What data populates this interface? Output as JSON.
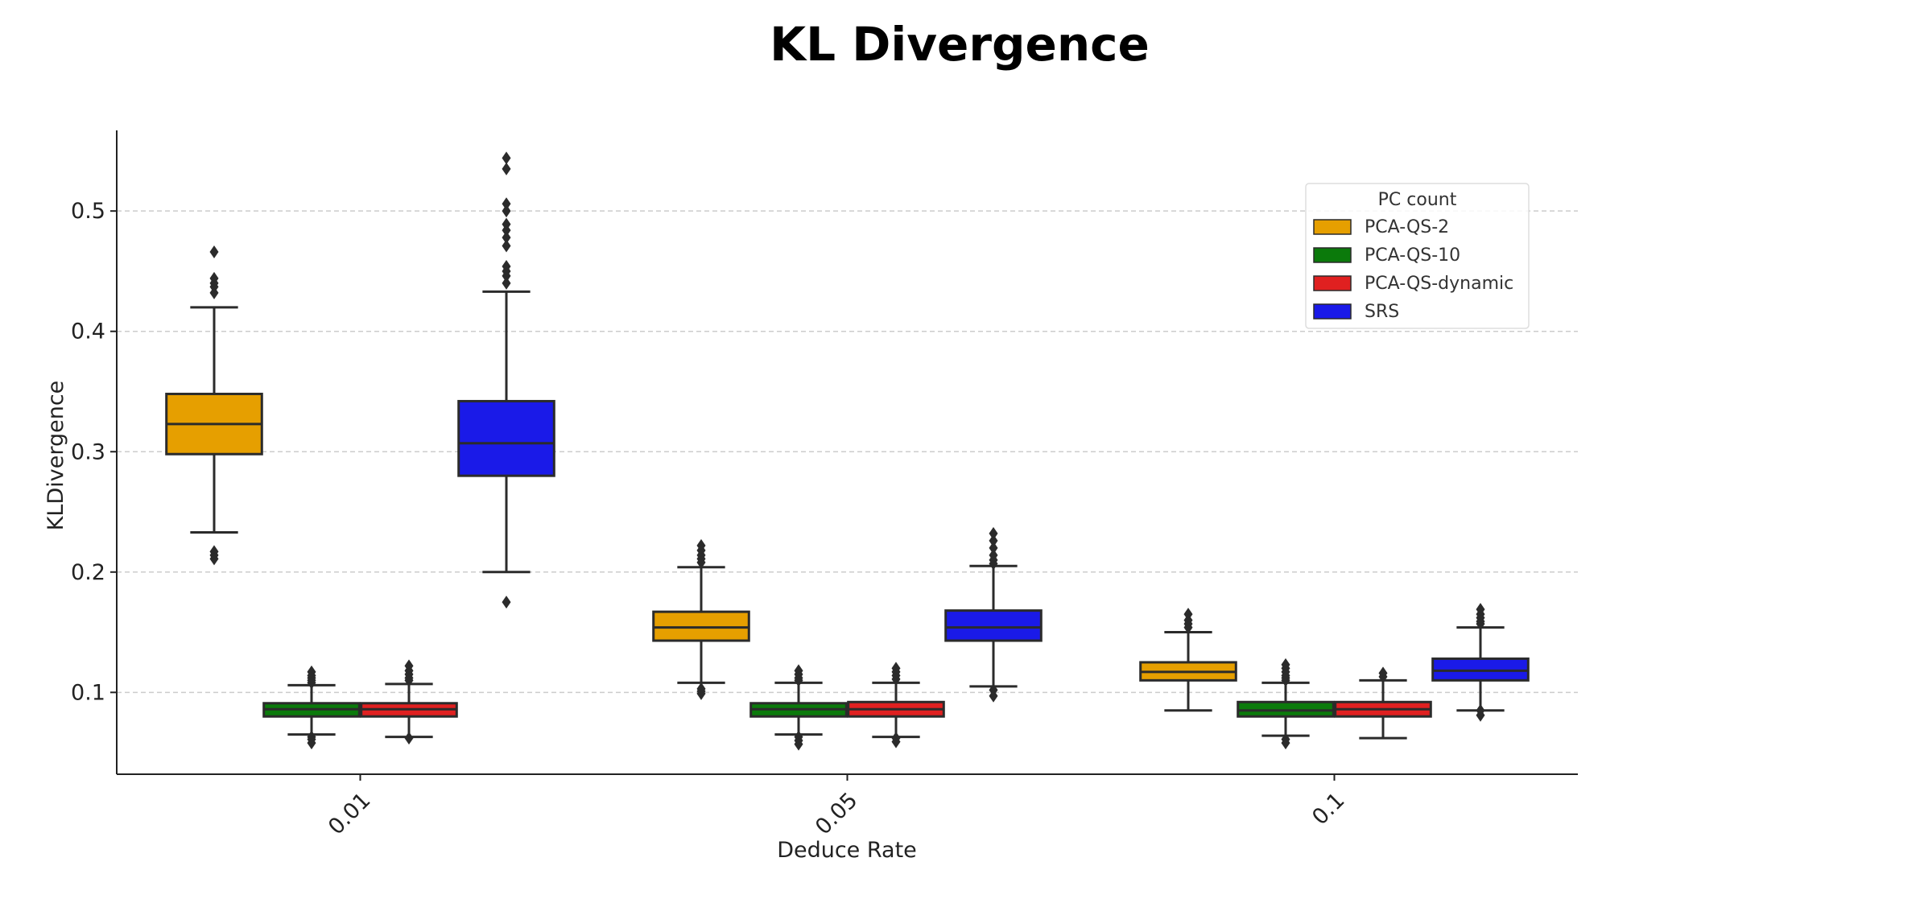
{
  "chart_data": {
    "type": "boxplot",
    "title": "KL Divergence",
    "xlabel": "Deduce Rate",
    "ylabel": "KLDivergence",
    "categories": [
      "0.01",
      "0.05",
      "0.1"
    ],
    "ylim": [
      0.032,
      0.567
    ],
    "yticks": [
      0.1,
      0.2,
      0.3,
      0.4,
      0.5
    ],
    "ytick_labels": [
      "0.1",
      "0.2",
      "0.3",
      "0.4",
      "0.5"
    ],
    "grid": "y-dashed",
    "legend": {
      "title": "PC count",
      "position": "top-right"
    },
    "series": [
      {
        "name": "PCA-QS-2",
        "color": "#e69f00",
        "boxes": [
          {
            "q1": 0.298,
            "median": 0.323,
            "q3": 0.348,
            "whislo": 0.233,
            "whishi": 0.42,
            "fliers": [
              0.466,
              0.444,
              0.44,
              0.437,
              0.432,
              0.217,
              0.214,
              0.211
            ]
          },
          {
            "q1": 0.143,
            "median": 0.154,
            "q3": 0.167,
            "whislo": 0.108,
            "whishi": 0.204,
            "fliers": [
              0.222,
              0.218,
              0.214,
              0.211,
              0.208,
              0.103,
              0.101,
              0.099
            ]
          },
          {
            "q1": 0.11,
            "median": 0.117,
            "q3": 0.125,
            "whislo": 0.085,
            "whishi": 0.15,
            "fliers": [
              0.165,
              0.16,
              0.157,
              0.154
            ]
          }
        ]
      },
      {
        "name": "PCA-QS-10",
        "color": "#0b7a0b",
        "boxes": [
          {
            "q1": 0.08,
            "median": 0.086,
            "q3": 0.091,
            "whislo": 0.065,
            "whishi": 0.106,
            "fliers": [
              0.117,
              0.114,
              0.112,
              0.11,
              0.108,
              0.063,
              0.061,
              0.058
            ]
          },
          {
            "q1": 0.08,
            "median": 0.086,
            "q3": 0.091,
            "whislo": 0.065,
            "whishi": 0.108,
            "fliers": [
              0.118,
              0.115,
              0.112,
              0.11,
              0.063,
              0.06,
              0.057
            ]
          },
          {
            "q1": 0.08,
            "median": 0.085,
            "q3": 0.092,
            "whislo": 0.064,
            "whishi": 0.108,
            "fliers": [
              0.123,
              0.12,
              0.117,
              0.114,
              0.112,
              0.11,
              0.061,
              0.058
            ]
          }
        ]
      },
      {
        "name": "PCA-QS-dynamic",
        "color": "#e02020",
        "boxes": [
          {
            "q1": 0.08,
            "median": 0.086,
            "q3": 0.091,
            "whislo": 0.063,
            "whishi": 0.107,
            "fliers": [
              0.122,
              0.118,
              0.115,
              0.112,
              0.11,
              0.062
            ]
          },
          {
            "q1": 0.08,
            "median": 0.086,
            "q3": 0.092,
            "whislo": 0.063,
            "whishi": 0.108,
            "fliers": [
              0.12,
              0.117,
              0.114,
              0.111,
              0.062,
              0.059
            ]
          },
          {
            "q1": 0.08,
            "median": 0.086,
            "q3": 0.092,
            "whislo": 0.062,
            "whishi": 0.11,
            "fliers": [
              0.116,
              0.113
            ]
          }
        ]
      },
      {
        "name": "SRS",
        "color": "#1a1ae8",
        "boxes": [
          {
            "q1": 0.28,
            "median": 0.307,
            "q3": 0.342,
            "whislo": 0.2,
            "whishi": 0.433,
            "fliers": [
              0.544,
              0.535,
              0.506,
              0.5,
              0.489,
              0.484,
              0.478,
              0.471,
              0.454,
              0.45,
              0.446,
              0.44,
              0.175
            ]
          },
          {
            "q1": 0.143,
            "median": 0.154,
            "q3": 0.168,
            "whislo": 0.105,
            "whishi": 0.205,
            "fliers": [
              0.232,
              0.226,
              0.22,
              0.214,
              0.21,
              0.207,
              0.102,
              0.097
            ]
          },
          {
            "q1": 0.11,
            "median": 0.118,
            "q3": 0.128,
            "whislo": 0.085,
            "whishi": 0.154,
            "fliers": [
              0.169,
              0.165,
              0.162,
              0.159,
              0.157,
              0.085,
              0.081
            ]
          }
        ]
      }
    ]
  }
}
